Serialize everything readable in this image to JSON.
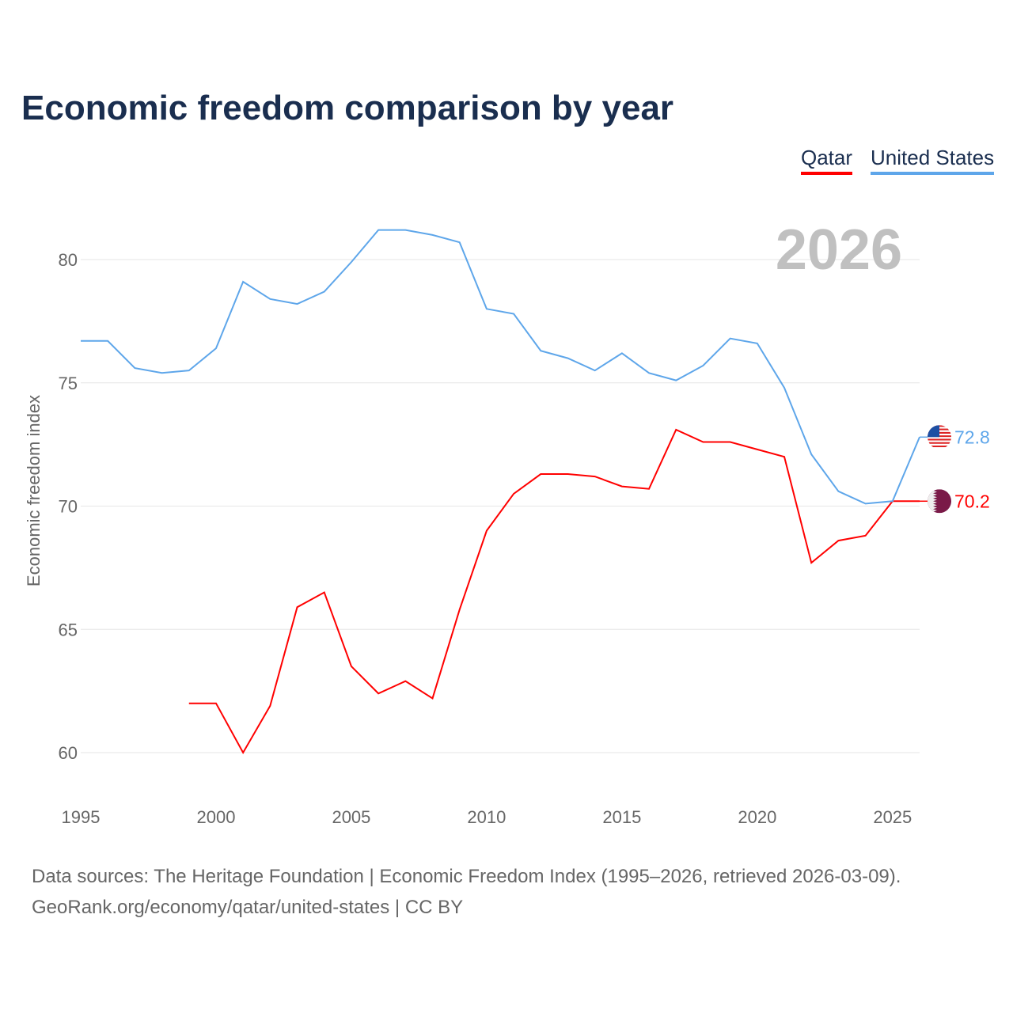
{
  "chart_data": {
    "type": "line",
    "title": "Economic freedom comparison by year",
    "ylabel": "Economic freedom index",
    "xlabel": "",
    "xlim": [
      1995,
      2026
    ],
    "ylim": [
      58,
      82
    ],
    "yticks": [
      60,
      65,
      70,
      75,
      80
    ],
    "xticks": [
      1995,
      2000,
      2005,
      2010,
      2015,
      2020,
      2025
    ],
    "grid": true,
    "legend_position": "top-right",
    "current_year_label": "2026",
    "series": [
      {
        "name": "Qatar",
        "color": "#ff0000",
        "end_label": "70.2",
        "flag": "qatar-flag",
        "x": [
          1999,
          2000,
          2001,
          2002,
          2003,
          2004,
          2005,
          2006,
          2007,
          2008,
          2009,
          2010,
          2011,
          2012,
          2013,
          2014,
          2015,
          2016,
          2017,
          2018,
          2019,
          2020,
          2021,
          2022,
          2023,
          2024,
          2025,
          2026
        ],
        "y": [
          62.0,
          62.0,
          60.0,
          61.9,
          65.9,
          66.5,
          63.5,
          62.4,
          62.9,
          62.2,
          65.8,
          69.0,
          70.5,
          71.3,
          71.3,
          71.2,
          70.8,
          70.7,
          73.1,
          72.6,
          72.6,
          72.3,
          72.0,
          67.7,
          68.6,
          68.8,
          70.2,
          70.2
        ]
      },
      {
        "name": "United States",
        "color": "#5ea6ea",
        "end_label": "72.8",
        "flag": "us-flag",
        "x": [
          1995,
          1996,
          1997,
          1998,
          1999,
          2000,
          2001,
          2002,
          2003,
          2004,
          2005,
          2006,
          2007,
          2008,
          2009,
          2010,
          2011,
          2012,
          2013,
          2014,
          2015,
          2016,
          2017,
          2018,
          2019,
          2020,
          2021,
          2022,
          2023,
          2024,
          2025,
          2026
        ],
        "y": [
          76.7,
          76.7,
          75.6,
          75.4,
          75.5,
          76.4,
          79.1,
          78.4,
          78.2,
          78.7,
          79.9,
          81.2,
          81.2,
          81.0,
          80.7,
          78.0,
          77.8,
          76.3,
          76.0,
          75.5,
          76.2,
          75.4,
          75.1,
          75.7,
          76.8,
          76.6,
          74.8,
          72.1,
          70.6,
          70.1,
          70.2,
          72.8
        ]
      }
    ]
  },
  "source": {
    "line1": "Data sources: The Heritage Foundation | Economic Freedom Index (1995–2026, retrieved 2026-03-09).",
    "line2": "GeoRank.org/economy/qatar/united-states | CC BY"
  }
}
